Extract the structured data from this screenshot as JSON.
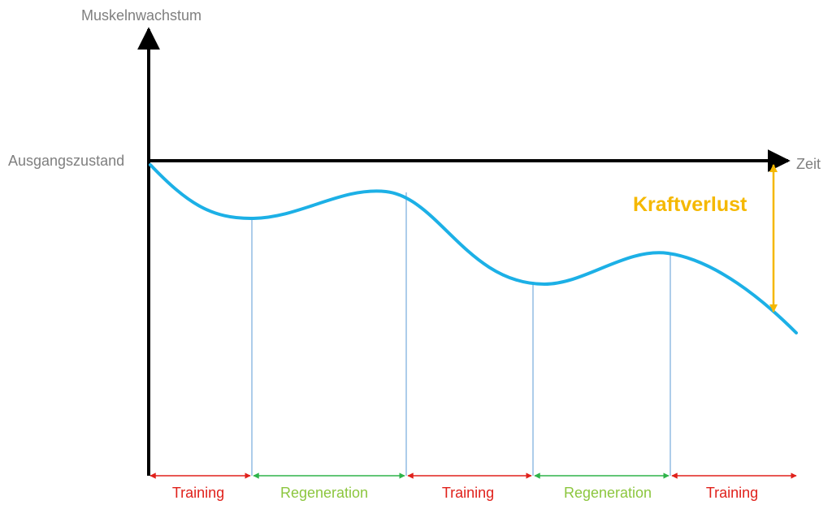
{
  "labels": {
    "y_axis": "Muskelnwachstum",
    "baseline": "Ausgangszustand",
    "x_axis": "Zeit",
    "loss": "Kraftverlust"
  },
  "phases": [
    {
      "label": "Training",
      "kind": "training"
    },
    {
      "label": "Regeneration",
      "kind": "regeneration"
    },
    {
      "label": "Training",
      "kind": "training"
    },
    {
      "label": "Regeneration",
      "kind": "regeneration"
    },
    {
      "label": "Training",
      "kind": "training"
    }
  ],
  "colors": {
    "axis": "#000000",
    "axis_text": "#7f7f7f",
    "curve": "#1cb0e6",
    "divider": "#5b9bd5",
    "training": "#e0211b",
    "regeneration": "#8cc63e",
    "regeneration_arrow": "#2eb34a",
    "loss": "#f5b800"
  }
}
